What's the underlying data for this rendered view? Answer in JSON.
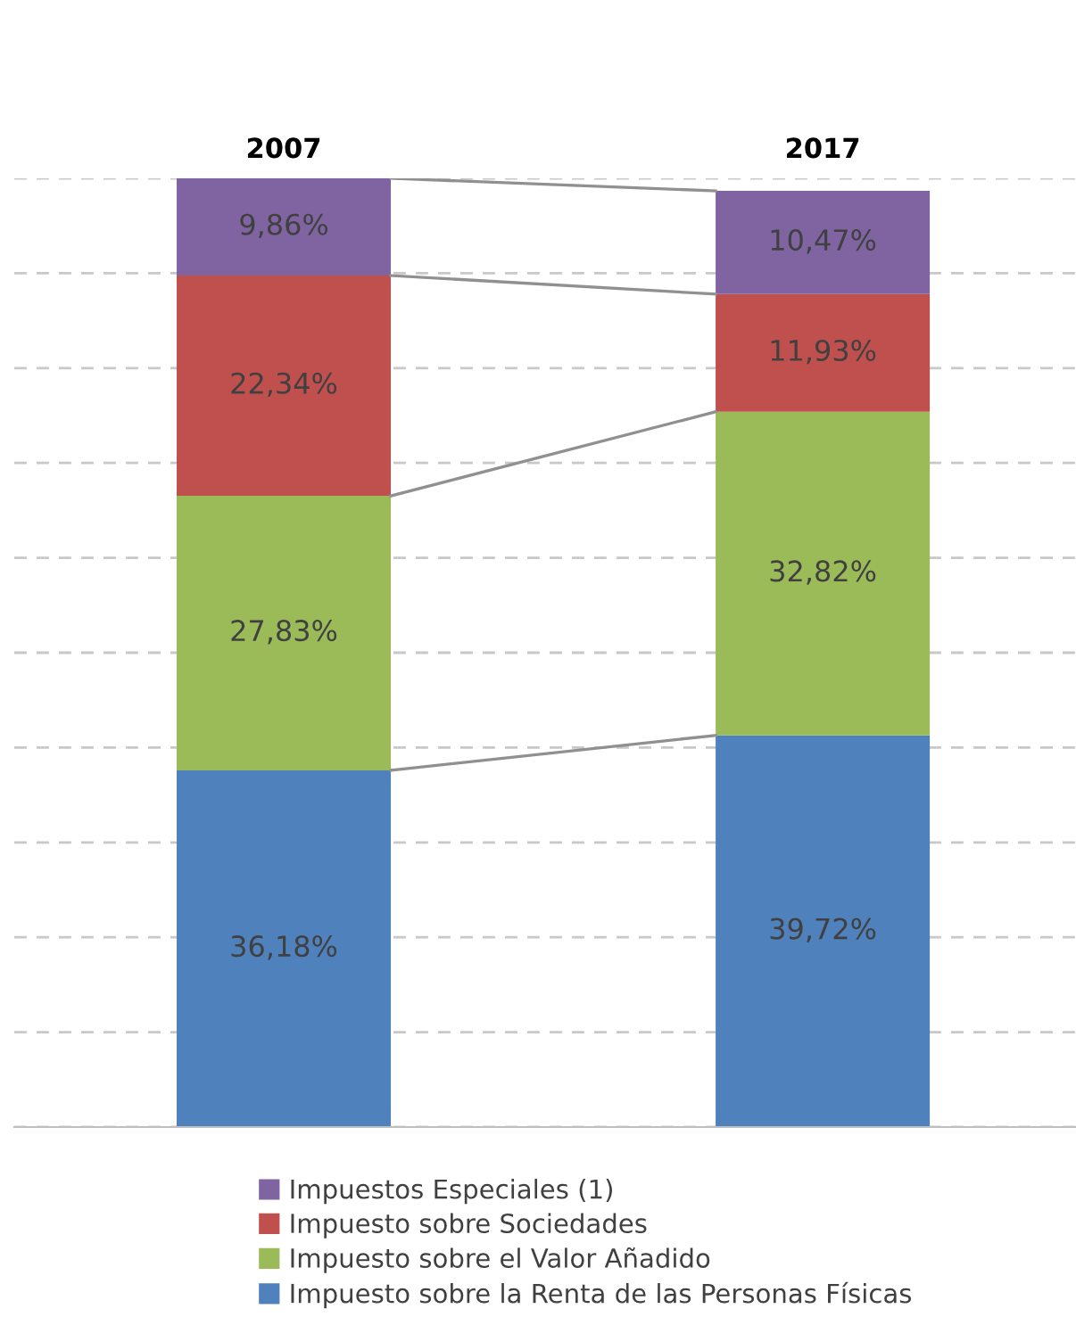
{
  "chart_data": {
    "type": "bar",
    "stacked": true,
    "categories": [
      "2007",
      "2017"
    ],
    "series": [
      {
        "name": "Impuesto sobre la Renta de las Personas Físicas",
        "color": "#4f81bd",
        "values": [
          36.18,
          39.72
        ],
        "value_labels": [
          "36,18%",
          "39,72%"
        ]
      },
      {
        "name": "Impuesto sobre el Valor Añadido",
        "color": "#9bbb59",
        "values": [
          27.83,
          32.82
        ],
        "value_labels": [
          "27,83%",
          "32,82%"
        ]
      },
      {
        "name": "Impuesto sobre Sociedades",
        "color": "#c0504d",
        "values": [
          22.34,
          11.93
        ],
        "value_labels": [
          "22,34%",
          "11,93%"
        ]
      },
      {
        "name": "Impuestos Especiales (1)",
        "color": "#8064a2",
        "values": [
          9.86,
          10.47
        ],
        "value_labels": [
          "9,86%",
          "10,47%"
        ]
      }
    ],
    "tick_labels": "x",
    "grid": "y",
    "legend": "bottom"
  }
}
